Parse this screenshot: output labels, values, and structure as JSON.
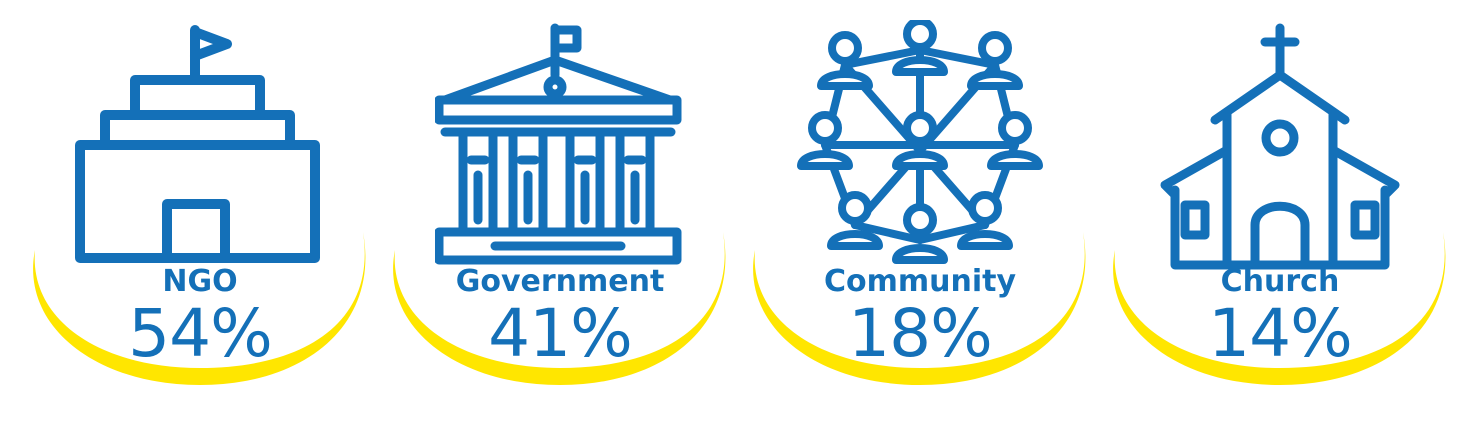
{
  "colors": {
    "icon_blue": "#1470b8",
    "text_blue": "#1470b8",
    "accent_yellow": "#ffe600"
  },
  "stats": [
    {
      "label": "NGO",
      "value": "54%",
      "icon": "ngo-building-flag-icon"
    },
    {
      "label": "Government",
      "value": "41%",
      "icon": "government-building-icon"
    },
    {
      "label": "Community",
      "value": "18%",
      "icon": "community-network-icon"
    },
    {
      "label": "Church",
      "value": "14%",
      "icon": "church-icon"
    }
  ]
}
